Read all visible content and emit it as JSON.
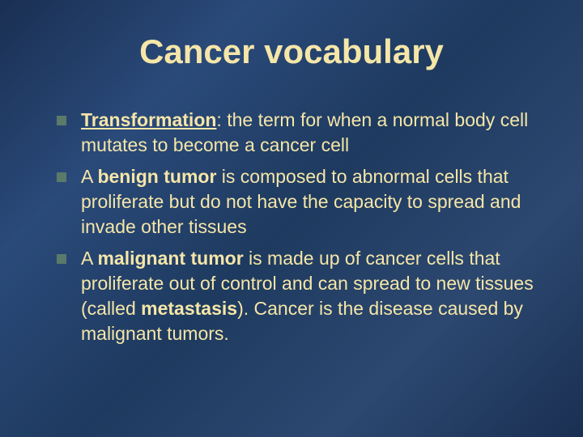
{
  "slide": {
    "title": "Cancer vocabulary",
    "background_color": "#1f3a5f",
    "title_color": "#f5e6a8",
    "text_color": "#f5e6a8",
    "bullet_color": "#5a7a6a",
    "title_fontsize": 42,
    "body_fontsize": 23,
    "bullets": [
      {
        "term": "Transformation",
        "term_style": "bold-underline",
        "after_term": ": the term for when a normal body cell mutates to become a cancer cell"
      },
      {
        "prefix": "A ",
        "term": "benign tumor",
        "term_style": "bold",
        "after_term": " is composed to abnormal cells that proliferate but do not have the capacity to spread and invade other tissues"
      },
      {
        "prefix": "A ",
        "term": "malignant tumor",
        "term_style": "bold",
        "after_term": " is made up of cancer cells that proliferate out of control and can spread to new tissues (called ",
        "term2": "metastasis",
        "term2_style": "bold",
        "after_term2": "). Cancer is the disease caused by malignant tumors."
      }
    ]
  }
}
